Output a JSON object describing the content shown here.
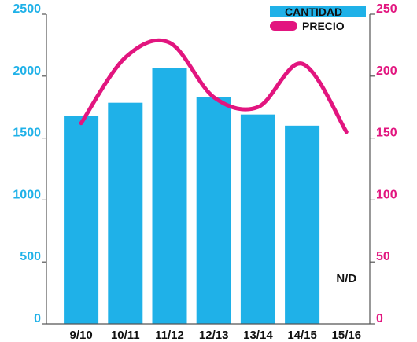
{
  "chart_data": {
    "type": "bar",
    "categories": [
      "9/10",
      "10/11",
      "11/12",
      "12/13",
      "13/14",
      "14/15",
      "15/16"
    ],
    "series": [
      {
        "name": "CANTIDAD",
        "type": "bar",
        "axis": "left",
        "color": "#1fb1e8",
        "values": [
          1680,
          1785,
          2065,
          1830,
          1690,
          1600,
          null
        ]
      },
      {
        "name": "PRECIO",
        "type": "line",
        "axis": "right",
        "color": "#e2157f",
        "values": [
          162,
          215,
          227,
          183,
          175,
          210,
          155
        ]
      }
    ],
    "y_left": {
      "ylim": [
        0,
        2500
      ],
      "ticks": [
        "0",
        "500",
        "1000",
        "1500",
        "2000",
        "2500"
      ]
    },
    "y_right": {
      "ylim": [
        0,
        250
      ],
      "ticks": [
        "0",
        "50",
        "100",
        "150",
        "200",
        "250"
      ]
    },
    "annotations": [
      {
        "text": "N/D",
        "category": "15/16"
      }
    ],
    "legend": {
      "placement": "top-right",
      "items": [
        "CANTIDAD",
        "PRECIO"
      ]
    },
    "grid": false
  }
}
